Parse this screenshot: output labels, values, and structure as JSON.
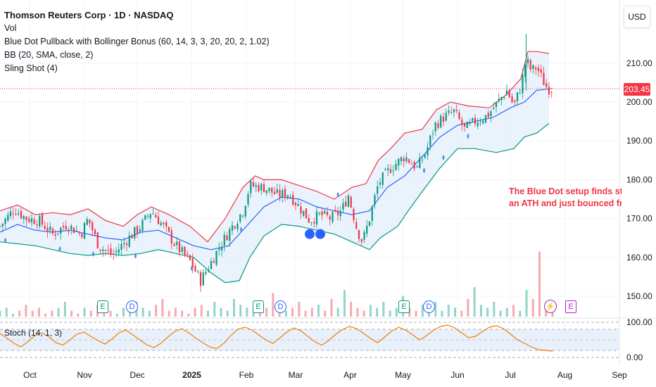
{
  "header": {
    "title": "Thomson Reuters Corp · 1D · NASDAQ",
    "indicators": [
      "Vol",
      "Blue Dot Pullback with Bollinger Bonus (60, 14, 3, 3, 20, 20, 2, 1.02)",
      "BB (20, SMA, close, 2)",
      "Sling Shot (4)"
    ],
    "currency": "USD"
  },
  "stoch_label": "Stoch (14, 1, 3)",
  "annotation": {
    "line1": "The Blue Dot setup finds strong s",
    "line2": "an ATH and just bounced from be"
  },
  "last_price": "203.45",
  "badges": {
    "earnings": "E",
    "dividend": "D",
    "upcoming_earnings": "E",
    "bolt": "⚡"
  },
  "colors": {
    "up": "#089981",
    "down": "#f23645",
    "upper_band": "#f23645",
    "lower_band": "#089981",
    "basis": "#2962ff",
    "band_fill": "#e3eefb",
    "stoch": "#f57c00",
    "blue_dot": "#4b8fe2"
  },
  "chart_data": {
    "type": "line",
    "title": "Thomson Reuters Corp · 1D · NASDAQ",
    "ylim": [
      146,
      218
    ],
    "y_ticks": [
      "150.00",
      "160.00",
      "170.00",
      "180.00",
      "190.00",
      "200.00",
      "210.00"
    ],
    "x_ticks": [
      "Oct",
      "Nov",
      "Dec",
      "2025",
      "Feb",
      "Mar",
      "Apr",
      "May",
      "Jun",
      "Jul",
      "Aug",
      "Sep"
    ],
    "x_tick_days": [
      17,
      48,
      78,
      109,
      140,
      168,
      199,
      229,
      260,
      290,
      321,
      352
    ],
    "x_range": [
      0,
      352
    ],
    "close_series": [
      [
        0,
        168
      ],
      [
        8,
        172.5
      ],
      [
        15,
        170
      ],
      [
        22,
        169.5
      ],
      [
        30,
        166
      ],
      [
        38,
        168.5
      ],
      [
        46,
        166
      ],
      [
        50,
        170
      ],
      [
        56,
        163
      ],
      [
        64,
        160.5
      ],
      [
        72,
        164.5
      ],
      [
        80,
        168
      ],
      [
        86,
        172
      ],
      [
        92,
        168.5
      ],
      [
        100,
        163
      ],
      [
        108,
        159
      ],
      [
        114,
        154
      ],
      [
        119,
        158
      ],
      [
        125,
        163
      ],
      [
        132,
        168
      ],
      [
        138,
        172
      ],
      [
        142,
        178.5
      ],
      [
        150,
        178
      ],
      [
        158,
        176
      ],
      [
        164,
        176.5
      ],
      [
        170,
        173
      ],
      [
        176,
        169.5
      ],
      [
        182,
        171
      ],
      [
        188,
        170
      ],
      [
        194,
        172
      ],
      [
        198,
        176
      ],
      [
        203,
        167
      ],
      [
        206,
        164
      ],
      [
        210,
        170
      ],
      [
        215,
        179
      ],
      [
        222,
        183
      ],
      [
        230,
        186
      ],
      [
        237,
        183
      ],
      [
        242,
        187
      ],
      [
        247,
        194
      ],
      [
        252,
        196
      ],
      [
        258,
        197.5
      ],
      [
        264,
        193
      ],
      [
        270,
        195
      ],
      [
        277,
        196.5
      ],
      [
        283,
        200
      ],
      [
        288,
        203
      ],
      [
        292,
        199
      ],
      [
        296,
        204
      ],
      [
        299,
        211
      ],
      [
        302,
        208
      ],
      [
        305,
        209
      ],
      [
        308,
        206
      ],
      [
        311,
        203.5
      ],
      [
        314,
        203.45
      ]
    ],
    "bb_upper": [
      [
        0,
        172
      ],
      [
        10,
        173.5
      ],
      [
        20,
        171
      ],
      [
        30,
        171.5
      ],
      [
        40,
        171
      ],
      [
        50,
        172.5
      ],
      [
        60,
        169.5
      ],
      [
        70,
        168
      ],
      [
        78,
        171
      ],
      [
        86,
        173
      ],
      [
        96,
        171
      ],
      [
        108,
        168
      ],
      [
        118,
        164
      ],
      [
        128,
        170
      ],
      [
        138,
        178
      ],
      [
        145,
        181
      ],
      [
        150,
        180
      ],
      [
        160,
        180
      ],
      [
        170,
        178.5
      ],
      [
        180,
        177
      ],
      [
        190,
        175
      ],
      [
        200,
        178
      ],
      [
        208,
        179
      ],
      [
        215,
        185
      ],
      [
        222,
        188
      ],
      [
        230,
        192
      ],
      [
        240,
        193
      ],
      [
        248,
        198
      ],
      [
        256,
        200
      ],
      [
        266,
        199
      ],
      [
        278,
        198.5
      ],
      [
        288,
        202
      ],
      [
        296,
        206
      ],
      [
        300,
        213
      ],
      [
        305,
        213
      ],
      [
        312,
        212.5
      ]
    ],
    "bb_basis": [
      [
        0,
        166.5
      ],
      [
        10,
        168.5
      ],
      [
        20,
        167
      ],
      [
        30,
        166.5
      ],
      [
        40,
        167
      ],
      [
        50,
        166
      ],
      [
        60,
        165
      ],
      [
        70,
        164.5
      ],
      [
        80,
        166.5
      ],
      [
        90,
        167
      ],
      [
        100,
        165
      ],
      [
        110,
        163
      ],
      [
        120,
        162
      ],
      [
        130,
        163
      ],
      [
        140,
        168
      ],
      [
        150,
        173
      ],
      [
        160,
        175.5
      ],
      [
        170,
        175
      ],
      [
        180,
        173
      ],
      [
        190,
        172
      ],
      [
        200,
        171
      ],
      [
        210,
        172
      ],
      [
        220,
        178
      ],
      [
        230,
        181
      ],
      [
        240,
        186
      ],
      [
        250,
        191
      ],
      [
        260,
        194
      ],
      [
        270,
        195
      ],
      [
        280,
        196
      ],
      [
        290,
        198.5
      ],
      [
        298,
        200
      ],
      [
        305,
        203
      ],
      [
        314,
        203.5
      ]
    ],
    "bb_lower": [
      [
        0,
        164
      ],
      [
        10,
        163.5
      ],
      [
        20,
        163
      ],
      [
        30,
        162
      ],
      [
        40,
        161
      ],
      [
        50,
        160.5
      ],
      [
        60,
        161
      ],
      [
        70,
        160.5
      ],
      [
        80,
        161
      ],
      [
        90,
        162
      ],
      [
        100,
        161
      ],
      [
        110,
        160
      ],
      [
        120,
        156
      ],
      [
        128,
        153.5
      ],
      [
        136,
        154
      ],
      [
        142,
        160
      ],
      [
        150,
        165.5
      ],
      [
        160,
        168.5
      ],
      [
        170,
        168
      ],
      [
        180,
        167
      ],
      [
        190,
        166
      ],
      [
        200,
        164
      ],
      [
        210,
        162
      ],
      [
        216,
        165
      ],
      [
        226,
        168
      ],
      [
        232,
        172
      ],
      [
        240,
        177
      ],
      [
        250,
        183
      ],
      [
        260,
        188
      ],
      [
        270,
        188
      ],
      [
        282,
        187
      ],
      [
        292,
        188
      ],
      [
        298,
        191
      ],
      [
        305,
        192
      ],
      [
        312,
        194.5
      ]
    ],
    "blue_dots_small": [
      [
        3,
        164.2
      ],
      [
        34,
        162
      ],
      [
        53,
        160.7
      ],
      [
        77,
        160.2
      ],
      [
        109,
        157
      ],
      [
        137,
        167
      ],
      [
        192,
        176
      ],
      [
        241,
        182.2
      ],
      [
        252,
        185.5
      ],
      [
        266,
        191
      ]
    ],
    "blue_dots_large": [
      [
        176,
        166
      ],
      [
        182,
        166
      ]
    ],
    "volume": [
      2,
      3,
      1,
      2,
      4,
      2,
      3,
      1,
      2,
      3,
      5,
      2,
      1,
      3,
      2,
      4,
      3,
      2,
      1,
      3,
      2,
      5,
      3,
      2,
      4,
      6,
      2,
      3,
      2,
      1,
      3,
      4,
      2,
      5,
      3,
      2,
      6,
      4,
      3,
      2,
      5,
      3,
      8,
      4,
      2,
      3,
      5,
      2,
      3,
      4,
      2,
      6,
      3,
      9,
      5,
      3,
      2,
      4,
      3,
      5,
      2,
      3,
      7,
      3,
      2,
      4,
      3,
      5,
      2,
      4,
      3,
      2,
      6,
      10,
      4,
      3,
      5,
      2,
      3,
      4,
      2,
      9,
      6,
      22,
      4,
      3
    ],
    "stoch": [
      68,
      55,
      40,
      30,
      45,
      62,
      70,
      58,
      42,
      35,
      50,
      66,
      72,
      60,
      48,
      38,
      52,
      70,
      78,
      64,
      50,
      36,
      28,
      40,
      58,
      74,
      82,
      70,
      55,
      42,
      30,
      25,
      40,
      62,
      80,
      86,
      78,
      64,
      50,
      40,
      55,
      72,
      84,
      76,
      60,
      45,
      35,
      48,
      66,
      80,
      88,
      82,
      68,
      54,
      42,
      58,
      75,
      86,
      78,
      64,
      50,
      62,
      78,
      88,
      92,
      84,
      70,
      56,
      60,
      74,
      86,
      90,
      82,
      66,
      50,
      40,
      30,
      22,
      20,
      18
    ],
    "stoch_range": [
      0,
      100
    ],
    "stoch_ticks": [
      "100.00",
      "0.00"
    ]
  }
}
